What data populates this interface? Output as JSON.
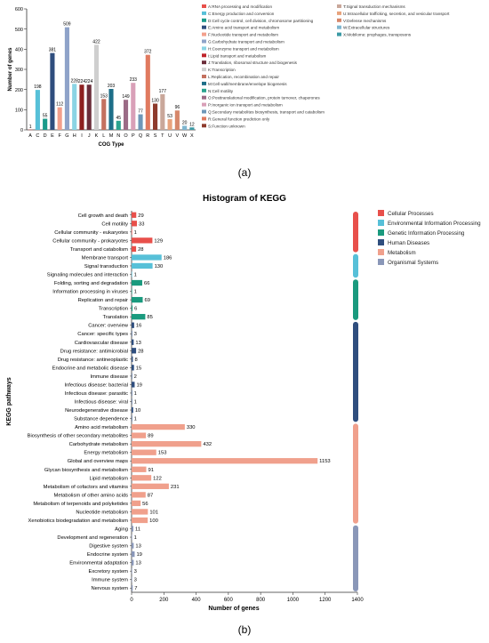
{
  "panel_labels": {
    "a": "(a)",
    "b": "(b)"
  },
  "chart_data": [
    {
      "type": "bar",
      "title": "",
      "xlabel": "COG Type",
      "ylabel": "Number of genes",
      "ylim": [
        0,
        600
      ],
      "yticks": [
        0,
        100,
        200,
        300,
        400,
        500,
        600
      ],
      "categories": [
        "A",
        "C",
        "D",
        "E",
        "F",
        "G",
        "H",
        "I",
        "J",
        "K",
        "L",
        "M",
        "N",
        "O",
        "P",
        "Q",
        "R",
        "S",
        "T",
        "U",
        "V",
        "W",
        "X"
      ],
      "values": [
        1,
        198,
        55,
        381,
        112,
        509,
        228,
        224,
        224,
        422,
        153,
        203,
        45,
        149,
        233,
        77,
        372,
        130,
        177,
        53,
        96,
        20,
        12
      ],
      "colors": [
        "#e8504b",
        "#57c0d8",
        "#1a9a8a",
        "#2f4e7e",
        "#f3a08c",
        "#8fa3c9",
        "#8bd4e4",
        "#8d1f1f",
        "#6b2d3a",
        "#cfcfcf",
        "#c4715f",
        "#1d6e88",
        "#2aa38f",
        "#9b6b86",
        "#d9a0b8",
        "#6e97b8",
        "#e07a5f",
        "#8e3b2d",
        "#c9a79a",
        "#e8a37d",
        "#d6876a",
        "#7fb6d0",
        "#3b9aa5"
      ],
      "legend": [
        {
          "label": "A:RNA processing and modification",
          "color": "#e8504b"
        },
        {
          "label": "C:Energy production and conversion",
          "color": "#57c0d8"
        },
        {
          "label": "D:Cell cycle control, cell division, chromosome partitioning",
          "color": "#1a9a8a"
        },
        {
          "label": "E:Amino acid transport and metabolism",
          "color": "#2f4e7e"
        },
        {
          "label": "F:Nucleotide transport and metabolism",
          "color": "#f3a08c"
        },
        {
          "label": "G:Carbohydrate transport and metabolism",
          "color": "#8fa3c9"
        },
        {
          "label": "H:Coenzyme transport and metabolism",
          "color": "#8bd4e4"
        },
        {
          "label": "I:Lipid transport and metabolism",
          "color": "#c0242b"
        },
        {
          "label": "J:Translation, ribosomal structure and biogenesis",
          "color": "#6b2d3a"
        },
        {
          "label": "K:Transcription",
          "color": "#cfcfcf"
        },
        {
          "label": "L:Replication, recombination and repair",
          "color": "#c4715f"
        },
        {
          "label": "M:Cell wall/membrane/envelope biogenesis",
          "color": "#1d6e88"
        },
        {
          "label": "N:Cell motility",
          "color": "#2aa38f"
        },
        {
          "label": "O:Posttranslational modification, protein turnover, chaperones",
          "color": "#9b6b86"
        },
        {
          "label": "P:Inorganic ion transport and metabolism",
          "color": "#d9a0b8"
        },
        {
          "label": "Q:Secondary metabolites biosynthesis, transport and catabolism",
          "color": "#6e97b8"
        },
        {
          "label": "R:General function prediction only",
          "color": "#e07a5f"
        },
        {
          "label": "S:Function unknown",
          "color": "#8e3b2d"
        },
        {
          "label": "T:Signal transduction mechanisms",
          "color": "#c9a79a"
        },
        {
          "label": "U:Intracellular trafficking, secretion, and vesicular transport",
          "color": "#e8a37d"
        },
        {
          "label": "V:Defense mechanisms",
          "color": "#d6876a"
        },
        {
          "label": "W:Extracellular structures",
          "color": "#7fb6d0"
        },
        {
          "label": "X:Mobilome: prophages, transposons",
          "color": "#3b9aa5"
        }
      ]
    },
    {
      "type": "bar",
      "orientation": "horizontal",
      "title": "Histogram of KEGG",
      "xlabel": "Number of genes",
      "ylabel": "KEGG pathways",
      "xlim": [
        0,
        1400
      ],
      "xticks": [
        0,
        200,
        400,
        600,
        800,
        1000,
        1200,
        1400
      ],
      "categories": [
        "Cell growth and death",
        "Cell motility",
        "Cellular community - eukaryotes",
        "Cellular community - prokaryotes",
        "Transport and catabolism",
        "Membrane transport",
        "Signal transduction",
        "Signaling molecules and interaction",
        "Folding, sorting and degradation",
        "Information processing in viruses",
        "Replication and repair",
        "Transcription",
        "Translation",
        "Cancer: overview",
        "Cancer: specific types",
        "Cardiovascular disease",
        "Drug resistance: antimicrobial",
        "Drug resistance: antineoplastic",
        "Endocrine and metabolic disease",
        "Immune disease",
        "Infectious disease: bacterial",
        "Infectious disease: parasitic",
        "Infectious disease: viral",
        "Neurodegenerative disease",
        "Substance dependence",
        "Amino acid metabolism",
        "Biosynthesis of other secondary metabolites",
        "Carbohydrate metabolism",
        "Energy metabolism",
        "Global and overview maps",
        "Glycan biosynthesis and metabolism",
        "Lipid metabolism",
        "Metabolism of cofactors and vitamins",
        "Metabolism of other amino acids",
        "Metabolism of terpenoids and polyketides",
        "Nucleotide metabolism",
        "Xenobiotics biodegradation and metabolism",
        "Aging",
        "Development and regeneration",
        "Digestive system",
        "Endocrine system",
        "Environmental adaptation",
        "Excretory system",
        "Immune system",
        "Nervous system"
      ],
      "values": [
        29,
        33,
        1,
        129,
        28,
        186,
        130,
        1,
        66,
        1,
        69,
        6,
        85,
        16,
        3,
        13,
        28,
        8,
        15,
        2,
        19,
        1,
        1,
        10,
        1,
        330,
        89,
        432,
        153,
        1153,
        91,
        122,
        231,
        87,
        56,
        101,
        100,
        11,
        1,
        13,
        19,
        13,
        3,
        3,
        7
      ],
      "groups": [
        {
          "name": "Cellular Processes",
          "color": "#e8504b",
          "count": 5
        },
        {
          "name": "Environmental Information Processing",
          "color": "#57c0d8",
          "count": 3
        },
        {
          "name": "Genetic Information Processing",
          "color": "#1a9a7e",
          "count": 5
        },
        {
          "name": "Human Diseases",
          "color": "#2f4e7e",
          "count": 12
        },
        {
          "name": "Metabolism",
          "color": "#f0a08c",
          "count": 12
        },
        {
          "name": "Organismal Systems",
          "color": "#8a97b8",
          "count": 8
        }
      ]
    }
  ]
}
